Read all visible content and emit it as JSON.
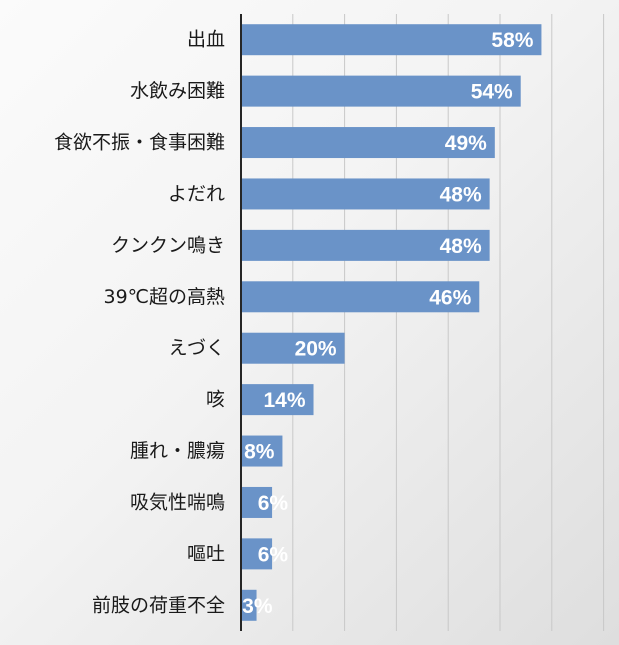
{
  "chart_data": {
    "type": "bar",
    "orientation": "horizontal",
    "categories": [
      "出血",
      "水飲み困難",
      "食欲不振・食事困難",
      "よだれ",
      "クンクン鳴き",
      "39℃超の高熱",
      "えづく",
      "咳",
      "腫れ・膿瘍",
      "吸気性喘鳴",
      "嘔吐",
      "前肢の荷重不全"
    ],
    "values": [
      58,
      54,
      49,
      48,
      48,
      46,
      20,
      14,
      8,
      6,
      6,
      3
    ],
    "value_labels": [
      "58%",
      "54%",
      "49%",
      "48%",
      "48%",
      "46%",
      "20%",
      "14%",
      "8%",
      "6%",
      "6%",
      "3%"
    ],
    "xlim": [
      0,
      70
    ],
    "x_gridline_step": 10,
    "x_tick_labels_shown": false,
    "grid": true,
    "legend": "none",
    "bar_color": "#6a93c8",
    "value_label_color": "#ffffff",
    "background_color": "#f0f0f0"
  }
}
